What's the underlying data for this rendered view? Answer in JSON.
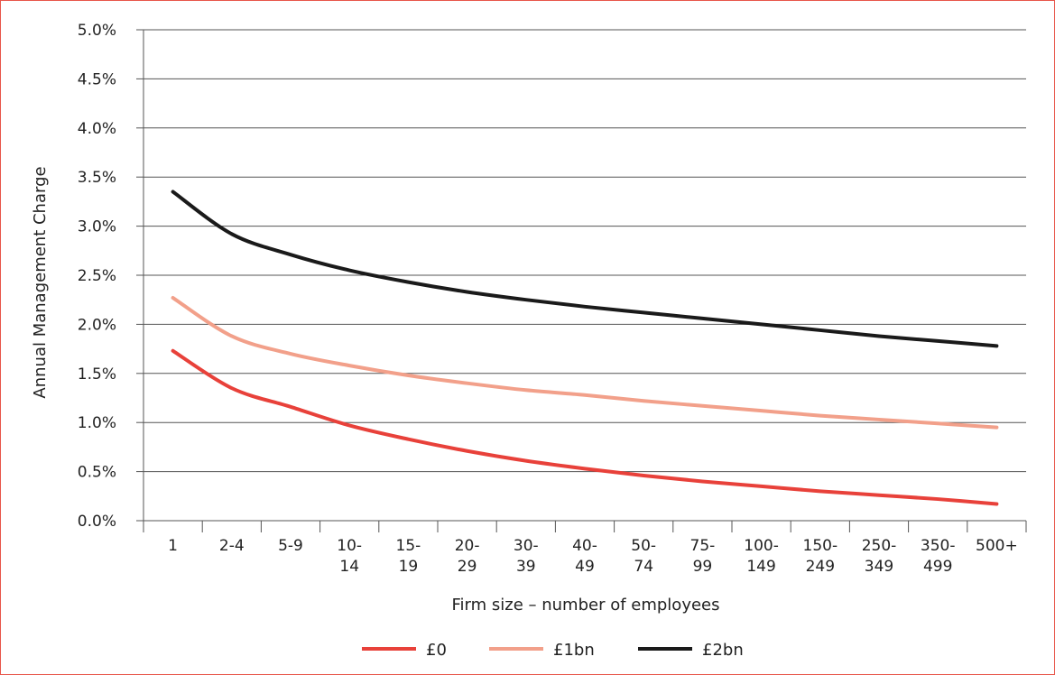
{
  "chart_data": {
    "type": "line",
    "title": "",
    "xlabel": "Firm size – number of employees",
    "ylabel": "Annual Management Charge",
    "ylim": [
      0,
      5.0
    ],
    "y_ticks": [
      "0.0%",
      "0.5%",
      "1.0%",
      "1.5%",
      "2.0%",
      "2.5%",
      "3.0%",
      "3.5%",
      "4.0%",
      "4.5%",
      "5.0%"
    ],
    "grid": "horizontal",
    "legend_position": "bottom",
    "categories": [
      [
        "1"
      ],
      [
        "2-4"
      ],
      [
        "5-9"
      ],
      [
        "10-",
        "14"
      ],
      [
        "15-",
        "19"
      ],
      [
        "20-",
        "29"
      ],
      [
        "30-",
        "39"
      ],
      [
        "40-",
        "49"
      ],
      [
        "50-",
        "74"
      ],
      [
        "75-",
        "99"
      ],
      [
        "100-",
        "149"
      ],
      [
        "150-",
        "249"
      ],
      [
        "250-",
        "349"
      ],
      [
        "350-",
        "499"
      ],
      [
        "500+"
      ]
    ],
    "series": [
      {
        "name": "£0",
        "color": "#e8413a",
        "values": [
          1.73,
          1.35,
          1.16,
          0.97,
          0.83,
          0.71,
          0.61,
          0.53,
          0.46,
          0.4,
          0.35,
          0.3,
          0.26,
          0.22,
          0.17
        ]
      },
      {
        "name": "£1bn",
        "color": "#f2a08a",
        "values": [
          2.27,
          1.88,
          1.7,
          1.58,
          1.48,
          1.4,
          1.33,
          1.28,
          1.22,
          1.17,
          1.12,
          1.07,
          1.03,
          0.99,
          0.95
        ]
      },
      {
        "name": "£2bn",
        "color": "#1a1a1a",
        "values": [
          3.35,
          2.92,
          2.71,
          2.55,
          2.43,
          2.33,
          2.25,
          2.18,
          2.12,
          2.06,
          2.0,
          1.94,
          1.88,
          1.83,
          1.78
        ]
      }
    ]
  }
}
